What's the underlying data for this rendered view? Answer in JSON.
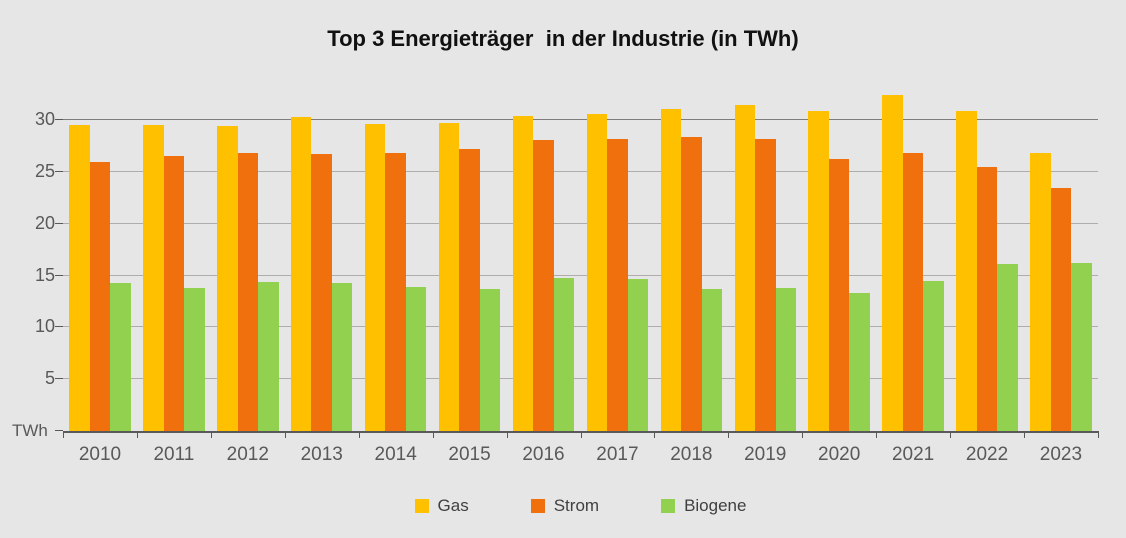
{
  "title": {
    "main": "Top 3 Energieträger  in der Industrie",
    "suffix": " (in TWh)"
  },
  "y_axis": {
    "unit_label": "TWh",
    "tick_values": [
      5,
      10,
      15,
      20,
      25,
      30
    ],
    "major_gridline_value": 30
  },
  "legend": {
    "items": [
      {
        "label": "Gas",
        "color": "#FFC000"
      },
      {
        "label": "Strom",
        "color": "#F1700E"
      },
      {
        "label": "Biogene",
        "color": "#92D050"
      }
    ]
  },
  "chart_data": {
    "type": "bar",
    "title": "Top 3 Energieträger  in der Industrie (in TWh)",
    "categories": [
      "2010",
      "2011",
      "2012",
      "2013",
      "2014",
      "2015",
      "2016",
      "2017",
      "2018",
      "2019",
      "2020",
      "2021",
      "2022",
      "2023"
    ],
    "series": [
      {
        "name": "Gas",
        "color": "#FFC000",
        "values": [
          29.5,
          29.5,
          29.4,
          30.3,
          29.6,
          29.7,
          30.4,
          30.6,
          31.1,
          31.5,
          30.9,
          32.4,
          30.9,
          26.8
        ]
      },
      {
        "name": "Strom",
        "color": "#F1700E",
        "values": [
          26.0,
          26.5,
          26.8,
          26.7,
          26.8,
          27.2,
          28.1,
          28.2,
          28.4,
          28.2,
          26.3,
          26.8,
          25.5,
          23.5
        ]
      },
      {
        "name": "Biogene",
        "color": "#92D050",
        "values": [
          14.3,
          13.8,
          14.4,
          14.3,
          13.9,
          13.7,
          14.8,
          14.7,
          13.7,
          13.8,
          13.3,
          14.5,
          16.1,
          16.2
        ]
      }
    ],
    "xlabel": "",
    "ylabel": "TWh",
    "ylim": [
      0,
      33.4
    ],
    "gridlines_at": [
      5,
      10,
      15,
      20,
      25,
      30
    ],
    "grid": true,
    "legend_position": "bottom",
    "background_color": "#E7E6E6"
  }
}
